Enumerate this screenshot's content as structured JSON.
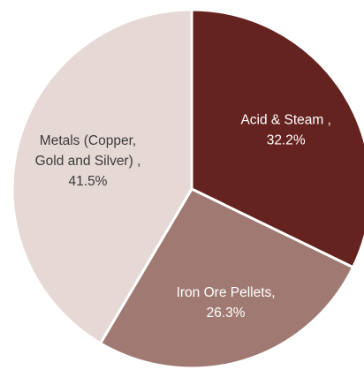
{
  "chart_data": {
    "type": "pie",
    "start_angle_deg": 0,
    "direction": "clockwise",
    "slices": [
      {
        "name": "Acid & Steam",
        "value": 32.2,
        "label_lines": [
          "Acid & Steam ,",
          "32.2%"
        ],
        "color": "#652320",
        "label_color": "light"
      },
      {
        "name": "Iron Ore Pellets",
        "value": 26.3,
        "label_lines": [
          "Iron Ore Pellets,",
          "26.3%"
        ],
        "color": "#a07a72",
        "label_color": "light"
      },
      {
        "name": "Metals (Copper, Gold and Silver)",
        "value": 41.5,
        "label_lines": [
          "Metals  (Copper,",
          "Gold and Silver) ,",
          "41.5%"
        ],
        "color": "#e6d8d5",
        "label_color": "dark"
      }
    ]
  }
}
